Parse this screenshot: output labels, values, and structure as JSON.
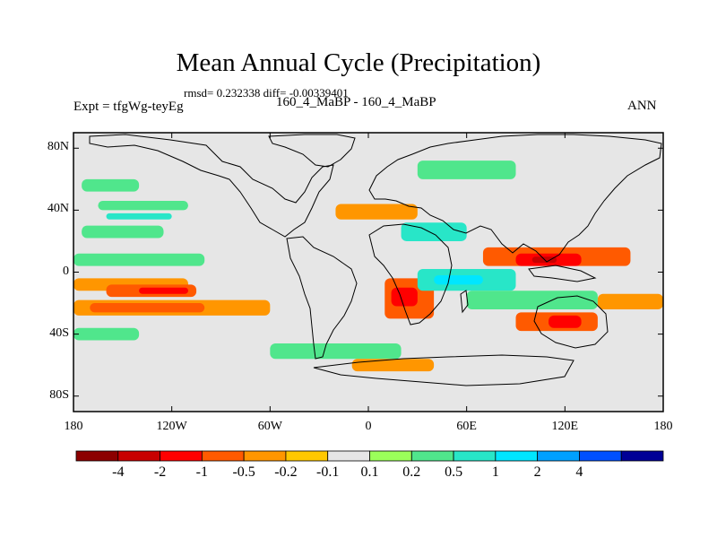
{
  "title": "Mean Annual Cycle (Precipitation)",
  "stats_line": "rmsd= 0.232338 diff= -0.00339401",
  "experiment": "Expt = tfgWg-teyEg",
  "case_line": "160_4_MaBP - 160_4_MaBP",
  "season": "ANN",
  "chart_data": {
    "type": "heatmap",
    "title": "Mean Annual Cycle (Precipitation)",
    "projection": "cylindrical equidistant",
    "x_ticks": [
      {
        "value": -180,
        "label": "180"
      },
      {
        "value": -120,
        "label": "120W"
      },
      {
        "value": -60,
        "label": "60W"
      },
      {
        "value": 0,
        "label": "0"
      },
      {
        "value": 60,
        "label": "60E"
      },
      {
        "value": 120,
        "label": "120E"
      },
      {
        "value": 180,
        "label": "180"
      }
    ],
    "y_ticks": [
      {
        "value": 80,
        "label": "80N"
      },
      {
        "value": 40,
        "label": "40N"
      },
      {
        "value": 0,
        "label": "0"
      },
      {
        "value": -40,
        "label": "40S"
      },
      {
        "value": -80,
        "label": "80S"
      }
    ],
    "xlim": [
      -180,
      180
    ],
    "ylim": [
      -90,
      90
    ],
    "colorbar": {
      "colors": [
        "#8c0000",
        "#c80000",
        "#ff0000",
        "#ff5a00",
        "#ff9600",
        "#ffc800",
        "#e6e6e6",
        "#9bff5a",
        "#50e68c",
        "#28e6c8",
        "#00e6ff",
        "#00a0ff",
        "#0050ff",
        "#000096"
      ],
      "labels": [
        "-4",
        "-2",
        "-1",
        "-0.5",
        "-0.2",
        "-0.1",
        "0.1",
        "0.2",
        "0.5",
        "1",
        "2",
        "4"
      ]
    },
    "regions": [
      {
        "lon": [
          -180,
          -100
        ],
        "lat": [
          4,
          12
        ],
        "level": "0.2"
      },
      {
        "lon": [
          -175,
          -125
        ],
        "lat": [
          22,
          30
        ],
        "level": "0.2"
      },
      {
        "lon": [
          -165,
          -110
        ],
        "lat": [
          40,
          46
        ],
        "level": "0.2"
      },
      {
        "lon": [
          -160,
          -120
        ],
        "lat": [
          34,
          38
        ],
        "level": "0.5"
      },
      {
        "lon": [
          -180,
          -110
        ],
        "lat": [
          -12,
          -4
        ],
        "level": "-0.2"
      },
      {
        "lon": [
          -160,
          -105
        ],
        "lat": [
          -16,
          -8
        ],
        "level": "-0.5"
      },
      {
        "lon": [
          -140,
          -110
        ],
        "lat": [
          -14,
          -10
        ],
        "level": "-1"
      },
      {
        "lon": [
          -180,
          -60
        ],
        "lat": [
          -28,
          -18
        ],
        "level": "-0.2"
      },
      {
        "lon": [
          -170,
          -100
        ],
        "lat": [
          -26,
          -20
        ],
        "level": "-0.5"
      },
      {
        "lon": [
          -180,
          -140
        ],
        "lat": [
          -44,
          -36
        ],
        "level": "0.2"
      },
      {
        "lon": [
          -20,
          30
        ],
        "lat": [
          34,
          44
        ],
        "level": "-0.2"
      },
      {
        "lon": [
          10,
          40
        ],
        "lat": [
          -30,
          -4
        ],
        "level": "-0.5"
      },
      {
        "lon": [
          14,
          30
        ],
        "lat": [
          -22,
          -10
        ],
        "level": "-1"
      },
      {
        "lon": [
          30,
          90
        ],
        "lat": [
          -12,
          2
        ],
        "level": "0.5"
      },
      {
        "lon": [
          40,
          70
        ],
        "lat": [
          -8,
          -2
        ],
        "level": "1"
      },
      {
        "lon": [
          20,
          60
        ],
        "lat": [
          20,
          32
        ],
        "level": "0.5"
      },
      {
        "lon": [
          70,
          160
        ],
        "lat": [
          4,
          16
        ],
        "level": "-0.5"
      },
      {
        "lon": [
          90,
          130
        ],
        "lat": [
          4,
          12
        ],
        "level": "-1"
      },
      {
        "lon": [
          100,
          115
        ],
        "lat": [
          6,
          10
        ],
        "level": "-2"
      },
      {
        "lon": [
          60,
          140
        ],
        "lat": [
          -24,
          -12
        ],
        "level": "0.2"
      },
      {
        "lon": [
          90,
          140
        ],
        "lat": [
          -38,
          -26
        ],
        "level": "-0.5"
      },
      {
        "lon": [
          110,
          130
        ],
        "lat": [
          -36,
          -28
        ],
        "level": "-1"
      },
      {
        "lon": [
          140,
          180
        ],
        "lat": [
          -24,
          -14
        ],
        "level": "-0.2"
      },
      {
        "lon": [
          -60,
          20
        ],
        "lat": [
          -56,
          -46
        ],
        "level": "0.2"
      },
      {
        "lon": [
          -10,
          40
        ],
        "lat": [
          -64,
          -56
        ],
        "level": "-0.2"
      },
      {
        "lon": [
          30,
          90
        ],
        "lat": [
          60,
          72
        ],
        "level": "0.2"
      },
      {
        "lon": [
          -175,
          -140
        ],
        "lat": [
          52,
          60
        ],
        "level": "0.2"
      }
    ]
  }
}
